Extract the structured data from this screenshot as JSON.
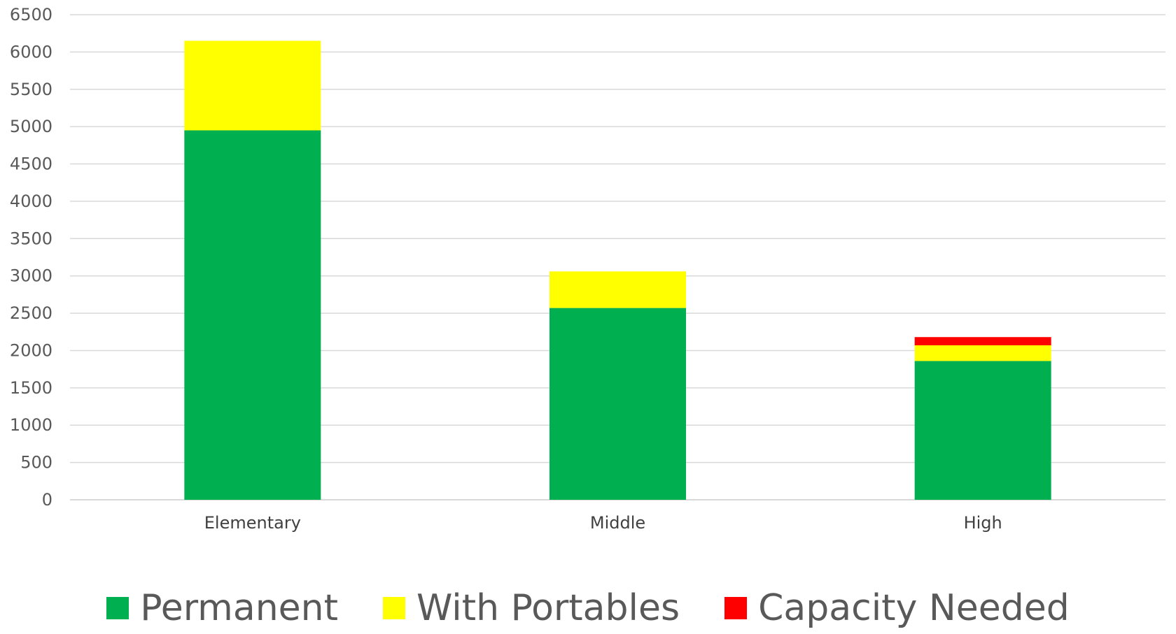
{
  "chart_data": {
    "type": "bar",
    "stacked": true,
    "categories": [
      "Elementary",
      "Middle",
      "High"
    ],
    "series": [
      {
        "name": "Permanent",
        "color": "#00B050",
        "values": [
          4950,
          2570,
          1860
        ]
      },
      {
        "name": "With Portables",
        "color": "#FFFF00",
        "values": [
          1200,
          490,
          210
        ]
      },
      {
        "name": "Capacity Needed",
        "color": "#FF0000",
        "values": [
          0,
          0,
          110
        ]
      }
    ],
    "title": "",
    "xlabel": "",
    "ylabel": "",
    "ylim": [
      0,
      6500
    ],
    "yticks": [
      0,
      500,
      1000,
      1500,
      2000,
      2500,
      3000,
      3500,
      4000,
      4500,
      5000,
      5500,
      6000,
      6500
    ],
    "grid": true,
    "gridline_color": "#D9D9D9",
    "legend_position": "bottom"
  }
}
